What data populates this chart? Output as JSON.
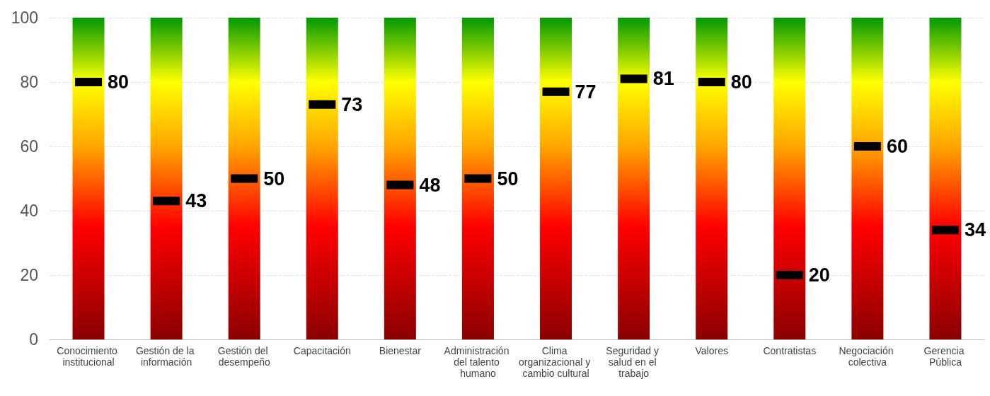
{
  "chart_data": {
    "type": "scatter",
    "categories": [
      "Conocimiento institucional",
      "Gestión de la información",
      "Gestión del desempeño",
      "Capacitación",
      "Bienestar",
      "Administración del talento humano",
      "Clima organizacional y cambio cultural",
      "Seguridad y salud en el trabajo",
      "Valores",
      "Contratistas",
      "Negociación colectiva",
      "Gerencia Pública"
    ],
    "series": [
      {
        "type": "bar",
        "values": [
          100,
          100,
          100,
          100,
          100,
          100,
          100,
          100,
          100,
          100,
          100,
          100
        ]
      },
      {
        "color": "#000000",
        "values": [
          80,
          43,
          50,
          73,
          48,
          50,
          77,
          81,
          80,
          20,
          60,
          34
        ],
        "data_labels": true
      }
    ],
    "marker": "square",
    "ylim": [
      0,
      100
    ],
    "yticks": [
      0,
      20,
      40,
      60,
      80,
      100
    ],
    "grid": "y"
  }
}
